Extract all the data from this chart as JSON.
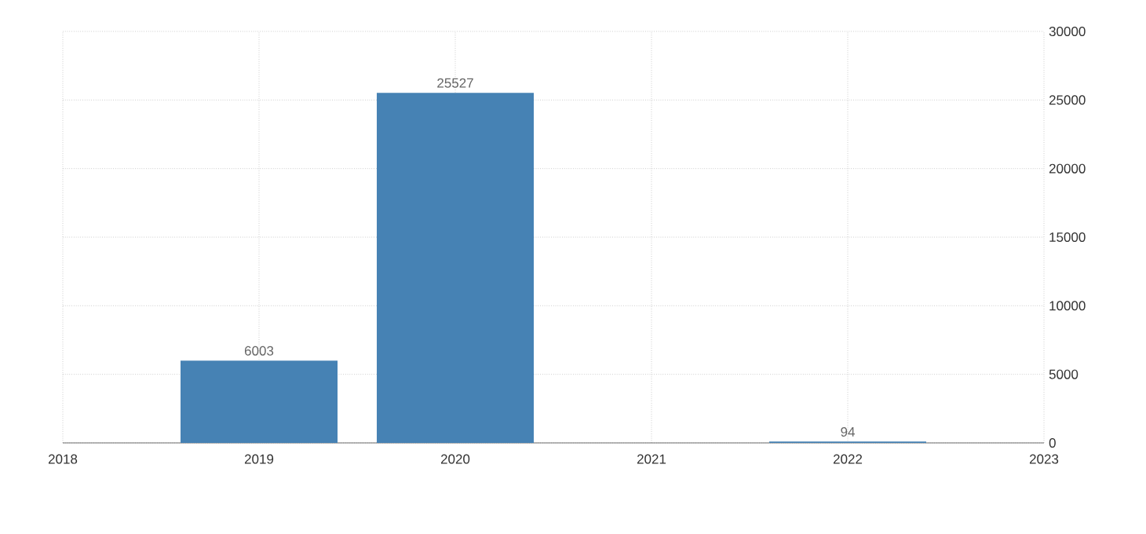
{
  "chart_data": {
    "type": "bar",
    "x": [
      2019,
      2020,
      2022
    ],
    "values": [
      6003,
      25527,
      94
    ],
    "color": "#4682b4",
    "xlim": [
      2018,
      2023
    ],
    "xticks": [
      2018,
      2019,
      2020,
      2021,
      2022,
      2023
    ],
    "ylim": [
      0,
      30000
    ],
    "yticks": [
      0,
      5000,
      10000,
      15000,
      20000,
      25000,
      30000
    ],
    "grid": true,
    "data_labels": true
  }
}
